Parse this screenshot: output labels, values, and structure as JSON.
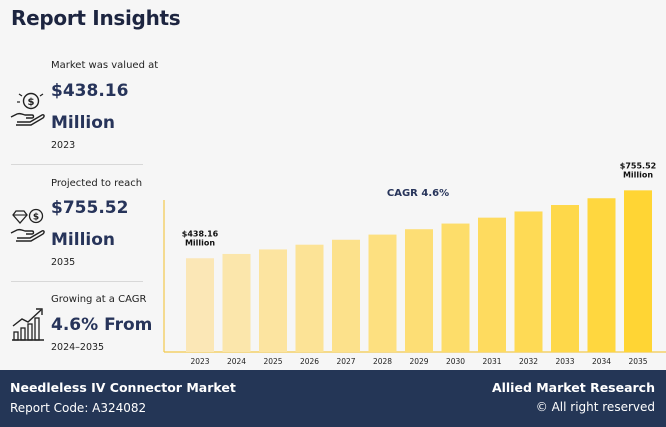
{
  "page": {
    "title": "Report Insights"
  },
  "stats": [
    {
      "caption": "Market was valued at",
      "value_line1": "$438.16",
      "value_line2": "Million",
      "year": "2023",
      "icon": "money-hand-icon"
    },
    {
      "caption": "Projected to reach",
      "value_line1": "$755.52",
      "value_line2": "Million",
      "year": "2035",
      "icon": "diamond-coin-hand-icon"
    },
    {
      "caption": "Growing at a CAGR",
      "value_line1": "4.6% From",
      "year": "2024–2035",
      "icon": "growth-chart-icon"
    }
  ],
  "chart_data": {
    "type": "bar",
    "categories": [
      "2023",
      "2024",
      "2025",
      "2026",
      "2027",
      "2028",
      "2029",
      "2030",
      "2031",
      "2032",
      "2033",
      "2034",
      "2035"
    ],
    "values": [
      438.16,
      458.3,
      479.4,
      501.5,
      524.6,
      548.7,
      573.9,
      600.3,
      627.9,
      656.8,
      687.0,
      718.6,
      755.52
    ],
    "title": "CAGR 4.6%",
    "xlabel": "",
    "ylabel": "",
    "ylim": [
      0,
      860
    ],
    "grid": false,
    "legend": "none",
    "annotations": [
      {
        "category": "2023",
        "line1": "$438.16",
        "line2": "Million"
      },
      {
        "category": "2035",
        "line1": "$755.52",
        "line2": "Million"
      }
    ],
    "colors": {
      "start": "#fbe7b6",
      "end": "#ffd534",
      "axis": "#f2c94c"
    }
  },
  "footer": {
    "market_name": "Needleless IV Connector Market",
    "report_code": "Report Code: A324082",
    "brand": "Allied Market Research",
    "rights": "© All right reserved"
  }
}
